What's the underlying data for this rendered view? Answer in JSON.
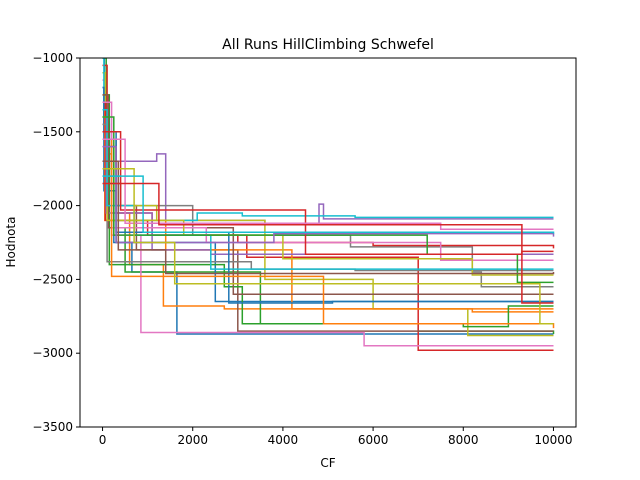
{
  "chart_data": {
    "type": "line",
    "title": "All Runs HillClimbing Schwefel",
    "xlabel": "CF",
    "ylabel": "Hodnota",
    "xlim": [
      -500,
      10500
    ],
    "ylim": [
      -3500,
      -1000
    ],
    "xticks": [
      0,
      2000,
      4000,
      6000,
      8000,
      10000
    ],
    "yticks": [
      -1000,
      -1500,
      -2000,
      -2500,
      -3000,
      -3500
    ],
    "xtick_labels": [
      "0",
      "2000",
      "4000",
      "6000",
      "8000",
      "10000"
    ],
    "ytick_labels": [
      "−1000",
      "−1500",
      "−2000",
      "−2500",
      "−3000",
      "−3500"
    ],
    "grid": false,
    "series": [
      {
        "color": "#1f77b4",
        "steps": [
          [
            0,
            -1000
          ],
          [
            40,
            -1450
          ],
          [
            150,
            -1900
          ],
          [
            300,
            -2250
          ],
          [
            650,
            -2450
          ],
          [
            1650,
            -2870
          ],
          [
            10000,
            -2870
          ]
        ]
      },
      {
        "color": "#ff7f0e",
        "steps": [
          [
            0,
            -1100
          ],
          [
            50,
            -1650
          ],
          [
            200,
            -2050
          ],
          [
            600,
            -2400
          ],
          [
            1350,
            -2680
          ],
          [
            2700,
            -2700
          ],
          [
            10000,
            -2700
          ]
        ]
      },
      {
        "color": "#2ca02c",
        "steps": [
          [
            0,
            -1000
          ],
          [
            80,
            -1600
          ],
          [
            250,
            -2150
          ],
          [
            500,
            -2450
          ],
          [
            3500,
            -2800
          ],
          [
            7000,
            -2850
          ],
          [
            10000,
            -2870
          ]
        ]
      },
      {
        "color": "#d62728",
        "steps": [
          [
            0,
            -1050
          ],
          [
            100,
            -1600
          ],
          [
            300,
            -2050
          ],
          [
            1100,
            -2200
          ],
          [
            3200,
            -2350
          ],
          [
            6500,
            -2350
          ],
          [
            7000,
            -2980
          ],
          [
            10000,
            -2980
          ]
        ]
      },
      {
        "color": "#9467bd",
        "steps": [
          [
            0,
            -1200
          ],
          [
            30,
            -1500
          ],
          [
            200,
            -1700
          ],
          [
            1200,
            -1650
          ],
          [
            1400,
            -2100
          ],
          [
            3600,
            -2130
          ],
          [
            4800,
            -1990
          ],
          [
            4900,
            -2090
          ],
          [
            10000,
            -2090
          ]
        ]
      },
      {
        "color": "#8c564b",
        "steps": [
          [
            0,
            -1250
          ],
          [
            60,
            -1550
          ],
          [
            300,
            -2000
          ],
          [
            750,
            -2300
          ],
          [
            3000,
            -2850
          ],
          [
            10000,
            -2850
          ]
        ]
      },
      {
        "color": "#e377c2",
        "steps": [
          [
            0,
            -1150
          ],
          [
            40,
            -1700
          ],
          [
            200,
            -2200
          ],
          [
            850,
            -2860
          ],
          [
            5800,
            -2950
          ],
          [
            10000,
            -2950
          ]
        ]
      },
      {
        "color": "#7f7f7f",
        "steps": [
          [
            0,
            -1300
          ],
          [
            120,
            -1850
          ],
          [
            400,
            -2000
          ],
          [
            2000,
            -2200
          ],
          [
            5500,
            -2280
          ],
          [
            8200,
            -2450
          ],
          [
            8400,
            -2550
          ],
          [
            10000,
            -2550
          ]
        ]
      },
      {
        "color": "#bcbd22",
        "steps": [
          [
            0,
            -1100
          ],
          [
            60,
            -1750
          ],
          [
            250,
            -2000
          ],
          [
            1200,
            -2100
          ],
          [
            3600,
            -2500
          ],
          [
            6000,
            -2700
          ],
          [
            8100,
            -2880
          ],
          [
            10000,
            -2880
          ]
        ]
      },
      {
        "color": "#17becf",
        "steps": [
          [
            0,
            -1000
          ],
          [
            30,
            -1400
          ],
          [
            150,
            -1800
          ],
          [
            350,
            -2100
          ],
          [
            2100,
            -2050
          ],
          [
            3100,
            -2070
          ],
          [
            5600,
            -2080
          ],
          [
            10000,
            -2080
          ]
        ]
      },
      {
        "color": "#1f77b4",
        "steps": [
          [
            0,
            -1200
          ],
          [
            30,
            -1900
          ],
          [
            250,
            -2250
          ],
          [
            2500,
            -2650
          ],
          [
            10000,
            -2650
          ]
        ]
      },
      {
        "color": "#ff7f0e",
        "steps": [
          [
            0,
            -1350
          ],
          [
            50,
            -2100
          ],
          [
            1400,
            -2300
          ],
          [
            4200,
            -2700
          ],
          [
            8200,
            -2720
          ],
          [
            10000,
            -2720
          ]
        ]
      },
      {
        "color": "#2ca02c",
        "steps": [
          [
            0,
            -1250
          ],
          [
            150,
            -2400
          ],
          [
            2700,
            -2550
          ],
          [
            3100,
            -2800
          ],
          [
            8000,
            -2820
          ],
          [
            9000,
            -2680
          ],
          [
            10000,
            -2680
          ]
        ]
      },
      {
        "color": "#d62728",
        "steps": [
          [
            0,
            -1300
          ],
          [
            60,
            -2100
          ],
          [
            1000,
            -2200
          ],
          [
            3000,
            -2250
          ],
          [
            6000,
            -2270
          ],
          [
            10000,
            -2290
          ]
        ]
      },
      {
        "color": "#9467bd",
        "steps": [
          [
            0,
            -1400
          ],
          [
            80,
            -2050
          ],
          [
            1100,
            -2300
          ],
          [
            2400,
            -2330
          ],
          [
            10000,
            -2330
          ]
        ]
      },
      {
        "color": "#8c564b",
        "steps": [
          [
            0,
            -1250
          ],
          [
            130,
            -2150
          ],
          [
            2900,
            -2600
          ],
          [
            5800,
            -2600
          ],
          [
            10000,
            -2600
          ]
        ]
      },
      {
        "color": "#e377c2",
        "steps": [
          [
            0,
            -1300
          ],
          [
            200,
            -2150
          ],
          [
            2300,
            -2250
          ],
          [
            7500,
            -2370
          ],
          [
            10000,
            -2370
          ]
        ]
      },
      {
        "color": "#7f7f7f",
        "steps": [
          [
            0,
            -1450
          ],
          [
            100,
            -2380
          ],
          [
            3300,
            -2430
          ],
          [
            5600,
            -2440
          ],
          [
            10000,
            -2440
          ]
        ]
      },
      {
        "color": "#bcbd22",
        "steps": [
          [
            0,
            -1400
          ],
          [
            100,
            -2100
          ],
          [
            1800,
            -2200
          ],
          [
            4000,
            -2360
          ],
          [
            8200,
            -2470
          ],
          [
            10000,
            -2470
          ]
        ]
      },
      {
        "color": "#17becf",
        "steps": [
          [
            0,
            -1350
          ],
          [
            100,
            -2000
          ],
          [
            700,
            -2200
          ],
          [
            2400,
            -2430
          ],
          [
            10000,
            -2430
          ]
        ]
      },
      {
        "color": "#1f77b4",
        "steps": [
          [
            0,
            -1500
          ],
          [
            300,
            -2180
          ],
          [
            2800,
            -2660
          ],
          [
            5100,
            -2650
          ],
          [
            10000,
            -2650
          ]
        ]
      },
      {
        "color": "#ff7f0e",
        "steps": [
          [
            0,
            -1550
          ],
          [
            200,
            -2480
          ],
          [
            4900,
            -2800
          ],
          [
            10000,
            -2830
          ]
        ]
      },
      {
        "color": "#2ca02c",
        "steps": [
          [
            0,
            -1400
          ],
          [
            250,
            -2200
          ],
          [
            7200,
            -2330
          ],
          [
            9200,
            -2520
          ],
          [
            10000,
            -2520
          ]
        ]
      },
      {
        "color": "#d62728",
        "steps": [
          [
            0,
            -1500
          ],
          [
            400,
            -2030
          ],
          [
            4500,
            -2330
          ],
          [
            9300,
            -2310
          ],
          [
            10000,
            -2310
          ]
        ]
      },
      {
        "color": "#9467bd",
        "steps": [
          [
            0,
            -1600
          ],
          [
            300,
            -2250
          ],
          [
            3800,
            -2190
          ],
          [
            10000,
            -2210
          ]
        ]
      },
      {
        "color": "#8c564b",
        "steps": [
          [
            0,
            -1700
          ],
          [
            350,
            -2300
          ],
          [
            1400,
            -2460
          ],
          [
            10000,
            -2450
          ]
        ]
      },
      {
        "color": "#e377c2",
        "steps": [
          [
            0,
            -1550
          ],
          [
            500,
            -2120
          ],
          [
            7500,
            -2160
          ],
          [
            10000,
            -2160
          ]
        ]
      },
      {
        "color": "#bcbd22",
        "steps": [
          [
            0,
            -1750
          ],
          [
            700,
            -2250
          ],
          [
            1600,
            -2530
          ],
          [
            9700,
            -2800
          ],
          [
            10000,
            -2800
          ]
        ]
      },
      {
        "color": "#17becf",
        "steps": [
          [
            0,
            -1800
          ],
          [
            900,
            -2180
          ],
          [
            10000,
            -2190
          ]
        ]
      },
      {
        "color": "#d62728",
        "steps": [
          [
            0,
            -1850
          ],
          [
            1250,
            -2130
          ],
          [
            9300,
            -2660
          ],
          [
            10000,
            -2660
          ]
        ]
      }
    ]
  }
}
